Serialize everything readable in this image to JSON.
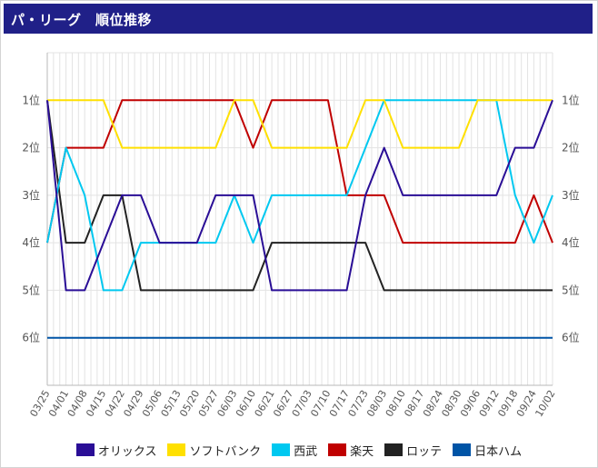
{
  "title": "パ・リーグ　順位推移",
  "chart_data": {
    "type": "line",
    "title": "パ・リーグ　順位推移",
    "x": [
      "03/25",
      "04/01",
      "04/08",
      "04/15",
      "04/22",
      "04/29",
      "05/06",
      "05/13",
      "05/20",
      "05/27",
      "06/03",
      "06/10",
      "06/21",
      "06/27",
      "07/03",
      "07/10",
      "07/17",
      "07/23",
      "08/03",
      "08/10",
      "08/17",
      "08/24",
      "08/30",
      "09/06",
      "09/12",
      "09/18",
      "09/24",
      "10/02"
    ],
    "y_ticks": [
      "1位",
      "2位",
      "3位",
      "4位",
      "5位",
      "6位"
    ],
    "ylim": [
      0,
      7
    ],
    "y_inverted": true,
    "grid": true,
    "legend_position": "bottom",
    "series": [
      {
        "name": "オリックス",
        "color": "#2a0e96",
        "values": [
          1,
          5,
          5,
          4,
          3,
          3,
          4,
          4,
          4,
          3,
          3,
          3,
          5,
          5,
          5,
          5,
          5,
          3,
          2,
          3,
          3,
          3,
          3,
          3,
          3,
          2,
          2,
          1
        ]
      },
      {
        "name": "ソフトバンク",
        "color": "#ffe000",
        "values": [
          1,
          1,
          1,
          1,
          2,
          2,
          2,
          2,
          2,
          2,
          1,
          1,
          2,
          2,
          2,
          2,
          2,
          1,
          1,
          2,
          2,
          2,
          2,
          1,
          1,
          1,
          1,
          1
        ]
      },
      {
        "name": "西武",
        "color": "#00c8f0",
        "values": [
          4,
          2,
          3,
          5,
          5,
          4,
          4,
          4,
          4,
          4,
          3,
          4,
          3,
          3,
          3,
          3,
          3,
          2,
          1,
          1,
          1,
          1,
          1,
          1,
          1,
          3,
          4,
          3
        ]
      },
      {
        "name": "楽天",
        "color": "#c00000",
        "values": [
          4,
          2,
          2,
          2,
          1,
          1,
          1,
          1,
          1,
          1,
          1,
          2,
          1,
          1,
          1,
          1,
          3,
          3,
          3,
          4,
          4,
          4,
          4,
          4,
          4,
          4,
          3,
          4
        ]
      },
      {
        "name": "ロッテ",
        "color": "#222222",
        "values": [
          1,
          4,
          4,
          3,
          3,
          5,
          5,
          5,
          5,
          5,
          5,
          5,
          4,
          4,
          4,
          4,
          4,
          4,
          5,
          5,
          5,
          5,
          5,
          5,
          5,
          5,
          5,
          5
        ]
      },
      {
        "name": "日本ハム",
        "color": "#0054a6",
        "values": [
          6,
          6,
          6,
          6,
          6,
          6,
          6,
          6,
          6,
          6,
          6,
          6,
          6,
          6,
          6,
          6,
          6,
          6,
          6,
          6,
          6,
          6,
          6,
          6,
          6,
          6,
          6,
          6
        ]
      }
    ]
  }
}
